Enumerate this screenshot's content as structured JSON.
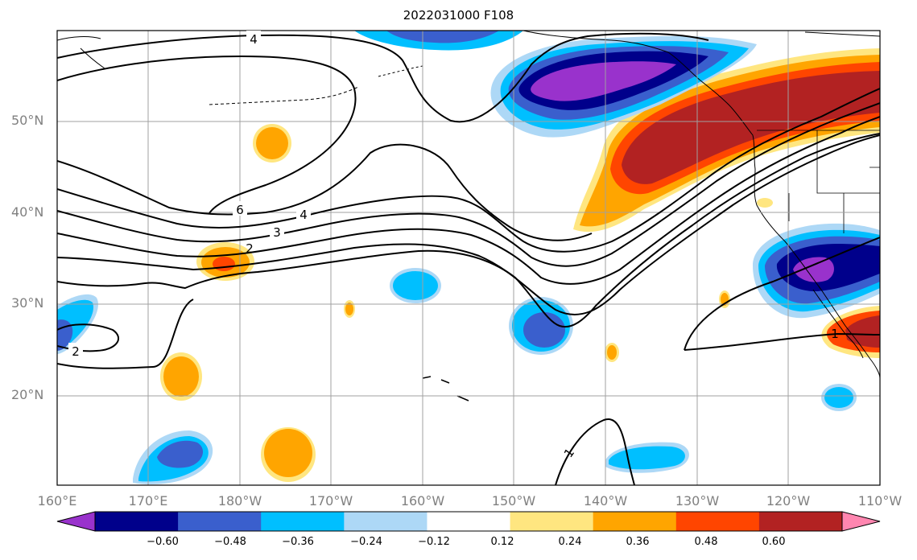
{
  "title": "2022031000 F108",
  "lat_labels": [
    "50°N",
    "40°N",
    "30°N",
    "20°N"
  ],
  "lon_labels": [
    "160°E",
    "170°E",
    "180°W",
    "170°W",
    "160°W",
    "150°W",
    "140°W",
    "130°W",
    "120°W",
    "110°W"
  ],
  "contour_labels": [
    "4",
    "6",
    "4",
    "3",
    "2",
    "2",
    "1",
    "1"
  ],
  "colorbar": {
    "ticks": [
      "−0.60",
      "−0.48",
      "−0.36",
      "−0.24",
      "−0.12",
      "0.12",
      "0.24",
      "0.36",
      "0.48",
      "0.60"
    ],
    "colors": [
      "#9932cc",
      "#00008b",
      "#3a5fcd",
      "#00bfff",
      "#add8f6",
      "#ffffff",
      "#ffe680",
      "#ffa500",
      "#ff4500",
      "#b22222",
      "#ff86b0"
    ]
  }
}
